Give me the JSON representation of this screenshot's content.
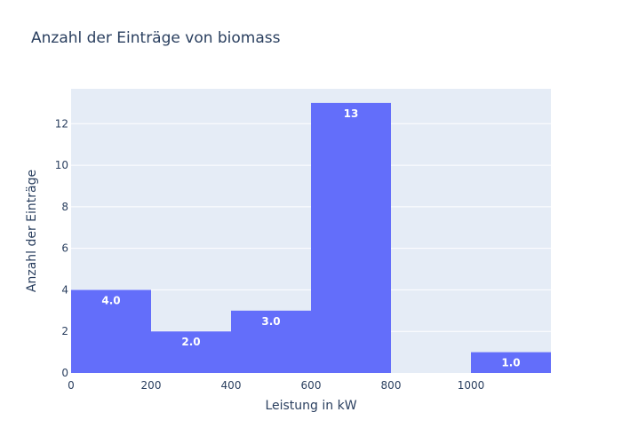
{
  "chart_data": {
    "type": "bar",
    "title": "Anzahl der Einträge von biomass",
    "xlabel": "Leistung in kW",
    "ylabel": "Anzahl der Einträge",
    "bins": [
      {
        "start": 0,
        "end": 200,
        "value": 4,
        "label": "4.0"
      },
      {
        "start": 200,
        "end": 400,
        "value": 2,
        "label": "2.0"
      },
      {
        "start": 400,
        "end": 600,
        "value": 3,
        "label": "3.0"
      },
      {
        "start": 600,
        "end": 800,
        "value": 13,
        "label": "13"
      },
      {
        "start": 800,
        "end": 1000,
        "value": 0,
        "label": ""
      },
      {
        "start": 1000,
        "end": 1200,
        "value": 1,
        "label": "1.0"
      }
    ],
    "xlim": [
      0,
      1200
    ],
    "ylim": [
      0,
      13.68
    ],
    "x_ticks": [
      0,
      200,
      400,
      600,
      800,
      1000
    ],
    "y_ticks": [
      0,
      2,
      4,
      6,
      8,
      10,
      12
    ],
    "grid": true,
    "colors": {
      "bar": "#636efa",
      "plot_background": "#e5ecf6",
      "gridline": "#ffffff",
      "text": "#2a3f5f"
    }
  }
}
